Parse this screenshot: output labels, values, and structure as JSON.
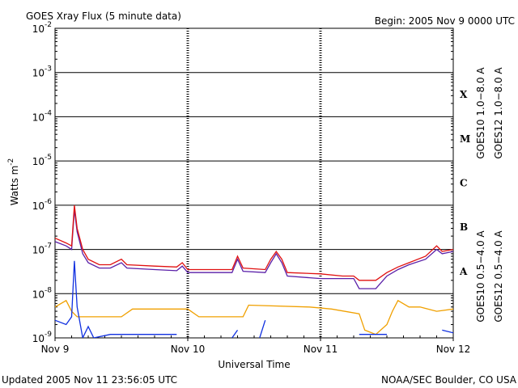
{
  "chart_data": {
    "type": "line",
    "title": "GOES Xray Flux (5 minute data)",
    "subtitle": "Begin:  2005 Nov 9 0000 UTC",
    "x_label": "Universal Time",
    "y_label": "Watts m",
    "y_label_exponent": "-2",
    "footer_left": "Updated 2005 Nov 11 23:56:05 UTC",
    "footer_right": "NOAA/SEC Boulder, CO USA",
    "annotations": [
      "X",
      "M",
      "C",
      "B",
      "A"
    ],
    "yscale": "log",
    "grid": true,
    "ylim": [
      1e-09,
      0.01
    ],
    "yticks": [
      {
        "value": 0.01,
        "label": "10",
        "exponent": "-2"
      },
      {
        "value": 0.001,
        "label": "10",
        "exponent": "-3"
      },
      {
        "value": 0.0001,
        "label": "10",
        "exponent": "-4"
      },
      {
        "value": 1e-05,
        "label": "10",
        "exponent": "-5"
      },
      {
        "value": 1e-06,
        "label": "10",
        "exponent": "-6"
      },
      {
        "value": 1e-07,
        "label": "10",
        "exponent": "-7"
      },
      {
        "value": 1e-08,
        "label": "10",
        "exponent": "-8"
      },
      {
        "value": 1e-09,
        "label": "10",
        "exponent": "-9"
      }
    ],
    "xlim": [
      0,
      72
    ],
    "xticks": [
      {
        "value": 0,
        "label": "Nov 9"
      },
      {
        "value": 24,
        "label": "Nov 10"
      },
      {
        "value": 48,
        "label": "Nov 11"
      },
      {
        "value": 72,
        "label": "Nov 12"
      }
    ],
    "series": [
      {
        "name": "GOES10 1.0−8.0 A",
        "color": "#5a1fa8",
        "x": [
          0,
          2,
          3,
          3.5,
          4,
          5,
          6,
          8,
          10,
          12,
          13,
          18,
          22,
          23,
          24,
          30,
          32,
          33,
          34,
          38,
          39,
          40,
          41,
          42,
          48,
          52,
          54,
          55,
          58,
          60,
          62,
          64,
          67,
          69,
          70,
          72
        ],
        "values": [
          1.5e-07,
          1.2e-07,
          1e-07,
          8e-07,
          2.5e-07,
          8e-08,
          5e-08,
          3.8e-08,
          3.8e-08,
          5e-08,
          3.8e-08,
          3.5e-08,
          3.3e-08,
          4.2e-08,
          3e-08,
          3e-08,
          3e-08,
          6e-08,
          3.2e-08,
          3e-08,
          5e-08,
          8e-08,
          5e-08,
          2.5e-08,
          2.2e-08,
          2.2e-08,
          2.2e-08,
          1.3e-08,
          1.3e-08,
          2.5e-08,
          3.5e-08,
          4.5e-08,
          6e-08,
          1e-07,
          8e-08,
          9e-08
        ]
      },
      {
        "name": "GOES12 1.0−8.0 A",
        "color": "#e01010",
        "x": [
          0,
          2,
          3,
          3.5,
          4,
          5,
          6,
          8,
          10,
          12,
          13,
          18,
          22,
          23,
          24,
          30,
          32,
          33,
          34,
          38,
          39,
          40,
          41,
          42,
          48,
          52,
          54,
          55,
          58,
          60,
          62,
          64,
          67,
          69,
          70,
          72
        ],
        "values": [
          1.8e-07,
          1.4e-07,
          1.2e-07,
          1e-06,
          3e-07,
          1e-07,
          6e-08,
          4.5e-08,
          4.5e-08,
          6e-08,
          4.5e-08,
          4.2e-08,
          4e-08,
          5e-08,
          3.5e-08,
          3.5e-08,
          3.5e-08,
          7e-08,
          3.8e-08,
          3.5e-08,
          6e-08,
          9e-08,
          6e-08,
          3e-08,
          2.8e-08,
          2.5e-08,
          2.5e-08,
          2e-08,
          2e-08,
          3e-08,
          4e-08,
          5e-08,
          7e-08,
          1.2e-07,
          9e-08,
          1e-07
        ]
      },
      {
        "name": "GOES10 0.5−4.0 A",
        "color": "#f0a000",
        "x": [
          0,
          2,
          3,
          4,
          6,
          12,
          14,
          24,
          26,
          34,
          35,
          46,
          50,
          55,
          56,
          58,
          60,
          61,
          62,
          64,
          66,
          69,
          72
        ],
        "values": [
          5e-09,
          7e-09,
          4e-09,
          3e-09,
          3e-09,
          3e-09,
          4.5e-09,
          4.5e-09,
          3e-09,
          3e-09,
          5.5e-09,
          5e-09,
          4.5e-09,
          3.5e-09,
          1.5e-09,
          1.2e-09,
          2e-09,
          4e-09,
          7e-09,
          5e-09,
          5e-09,
          4e-09,
          4.5e-09
        ]
      },
      {
        "name": "GOES12 0.5−4.0 A",
        "color": "#1030e0",
        "x": [
          0,
          2,
          3,
          3.5,
          4,
          5,
          6,
          7,
          10,
          22,
          23,
          32,
          33,
          34,
          37,
          38,
          39,
          55,
          60,
          62,
          70,
          72
        ],
        "values": [
          2.5e-09,
          2e-09,
          3e-09,
          5.5e-08,
          5e-09,
          1e-09,
          1.8e-09,
          1e-09,
          1.2e-09,
          1.2e-09,
          null,
          1e-09,
          1.5e-09,
          null,
          1e-09,
          2.5e-09,
          null,
          1.2e-09,
          1.2e-09,
          null,
          1.5e-09,
          1.3e-09
        ]
      }
    ]
  }
}
